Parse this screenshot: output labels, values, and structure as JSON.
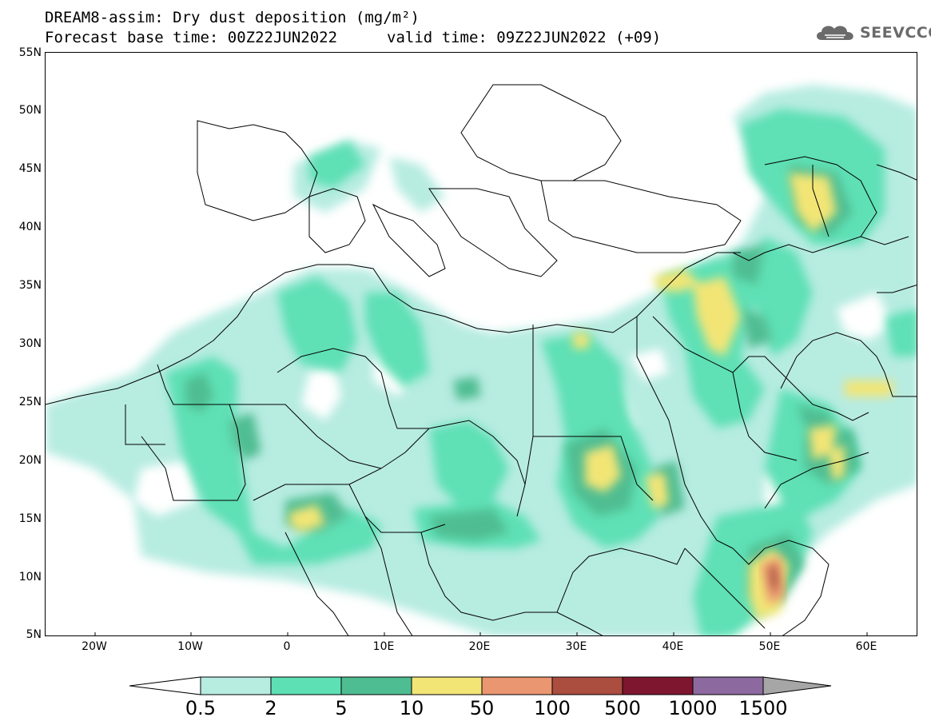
{
  "header": {
    "title": "DREAM8-assim: Dry dust deposition (mg/m²)",
    "base_time": "Forecast base time: 00Z22JUN2022",
    "valid_time": "valid time: 09Z22JUN2022 (+09)",
    "logo_text": "SEEVCCC"
  },
  "map": {
    "lat_labels": [
      "55N",
      "50N",
      "45N",
      "40N",
      "35N",
      "30N",
      "25N",
      "20N",
      "15N",
      "10N",
      "5N"
    ],
    "lon_labels": [
      "20W",
      "10W",
      "0",
      "10E",
      "20E",
      "30E",
      "40E",
      "50E",
      "60E"
    ],
    "land_color": "#ffffff",
    "boundary_color": "#000000"
  },
  "legend": {
    "labels": [
      "0.5",
      "2",
      "5",
      "10",
      "50",
      "100",
      "500",
      "1000",
      "1500"
    ],
    "colors": [
      "#b7ece1",
      "#5ee0b5",
      "#4fbd92",
      "#f2e576",
      "#ea9670",
      "#ab4d3f",
      "#7f1630",
      "#8c6aa0"
    ],
    "under_color": "#ffffff",
    "over_color": "#a6a6a6"
  }
}
